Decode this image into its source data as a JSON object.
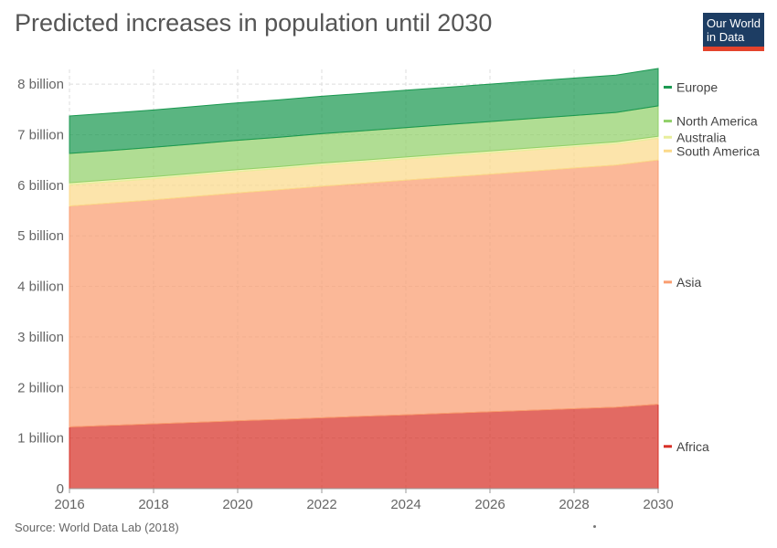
{
  "header": {
    "title": "Predicted increases in population until 2030"
  },
  "logo": {
    "line1": "Our World",
    "line2": "in Data",
    "background": "#1d3d63",
    "accent": "#e4432c"
  },
  "footer": {
    "source": "Source: World Data Lab (2018)"
  },
  "chart_data": {
    "type": "area",
    "stacked": true,
    "title": "Predicted increases in population until 2030",
    "xlabel": "",
    "ylabel": "",
    "x": [
      2016,
      2017,
      2018,
      2019,
      2020,
      2021,
      2022,
      2023,
      2024,
      2025,
      2026,
      2027,
      2028,
      2029,
      2030
    ],
    "xlim": [
      2016,
      2030
    ],
    "ylim": [
      0,
      8.4
    ],
    "x_ticks": [
      2016,
      2018,
      2020,
      2022,
      2024,
      2026,
      2028,
      2030
    ],
    "x_tick_labels": [
      "2016",
      "2018",
      "2020",
      "2022",
      "2024",
      "2026",
      "2028",
      "2030"
    ],
    "y_ticks": [
      0,
      1,
      2,
      3,
      4,
      5,
      6,
      7,
      8
    ],
    "y_tick_labels": [
      "0",
      "1 billion",
      "2 billion",
      "3 billion",
      "4 billion",
      "5 billion",
      "6 billion",
      "7 billion",
      "8 billion"
    ],
    "grid": true,
    "legend": "right",
    "series": [
      {
        "name": "Africa",
        "color": "#d73027",
        "values": [
          1.22,
          1.25,
          1.28,
          1.31,
          1.34,
          1.37,
          1.4,
          1.43,
          1.46,
          1.49,
          1.52,
          1.55,
          1.58,
          1.61,
          1.67
        ]
      },
      {
        "name": "Asia",
        "color": "#f99d70",
        "values": [
          4.37,
          4.4,
          4.43,
          4.47,
          4.51,
          4.54,
          4.58,
          4.61,
          4.64,
          4.67,
          4.7,
          4.73,
          4.76,
          4.79,
          4.83
        ]
      },
      {
        "name": "South America",
        "color": "#fbd98a",
        "values": [
          0.42,
          0.42,
          0.42,
          0.42,
          0.42,
          0.42,
          0.42,
          0.42,
          0.42,
          0.42,
          0.42,
          0.42,
          0.42,
          0.42,
          0.43
        ]
      },
      {
        "name": "Australia",
        "color": "#e8ee9c",
        "values": [
          0.04,
          0.04,
          0.04,
          0.04,
          0.04,
          0.04,
          0.04,
          0.04,
          0.04,
          0.04,
          0.04,
          0.04,
          0.04,
          0.04,
          0.04
        ]
      },
      {
        "name": "North America",
        "color": "#91d069",
        "values": [
          0.58,
          0.58,
          0.58,
          0.58,
          0.58,
          0.58,
          0.58,
          0.58,
          0.58,
          0.58,
          0.58,
          0.58,
          0.58,
          0.58,
          0.6
        ]
      },
      {
        "name": "Europe",
        "color": "#1a9850",
        "values": [
          0.74,
          0.74,
          0.74,
          0.74,
          0.74,
          0.74,
          0.74,
          0.74,
          0.74,
          0.74,
          0.74,
          0.74,
          0.74,
          0.74,
          0.74
        ]
      }
    ]
  }
}
